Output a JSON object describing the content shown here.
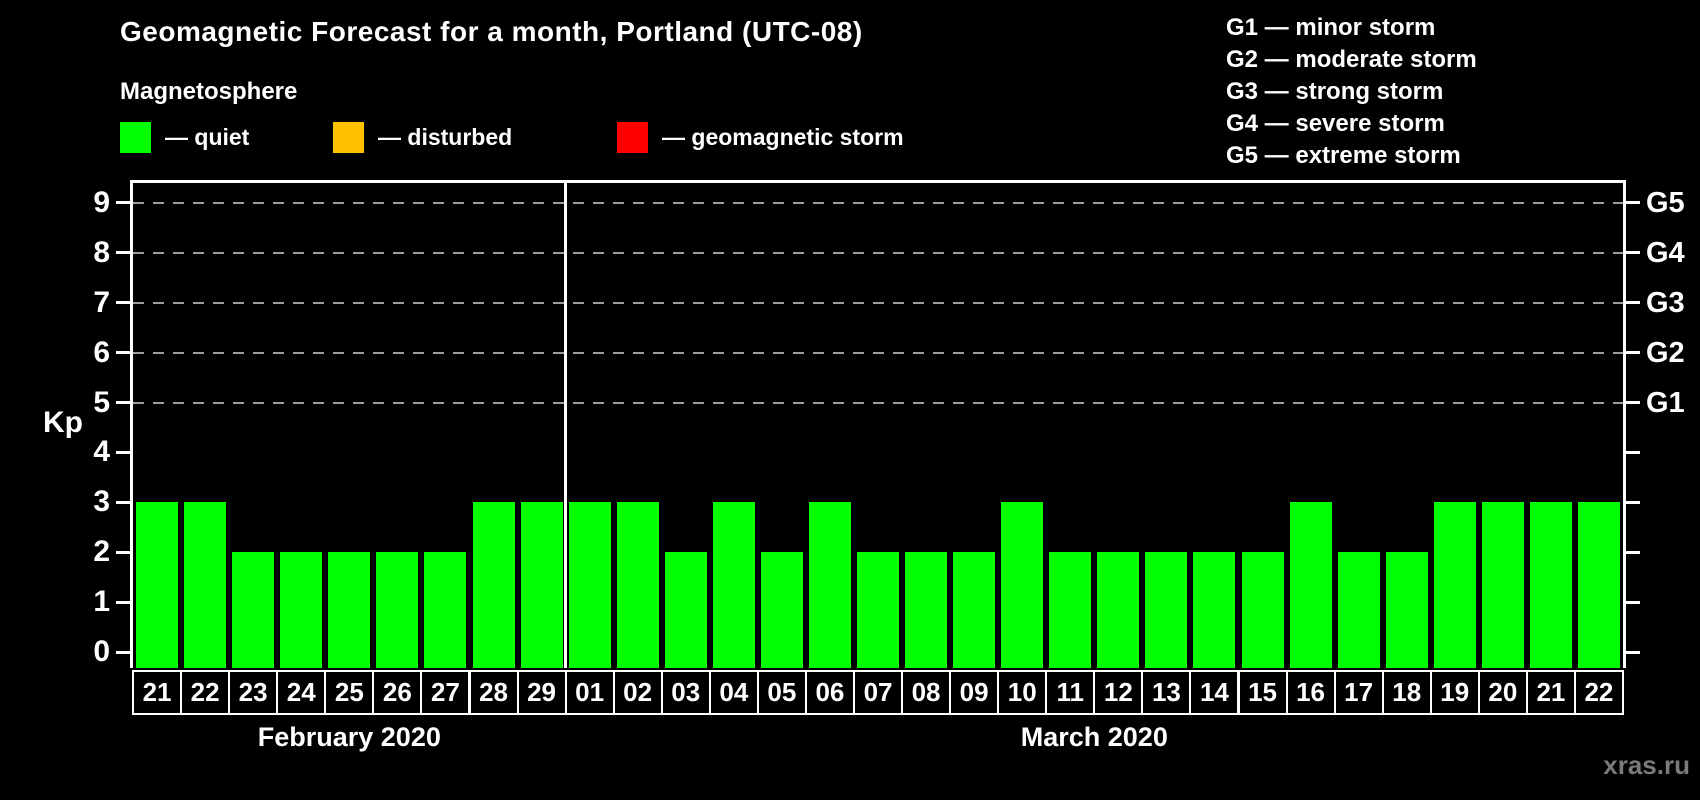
{
  "title": "Geomagnetic Forecast for a month, Portland (UTC-08)",
  "magnetosphere_legend": {
    "heading": "Magnetosphere",
    "items": [
      {
        "name": "quiet",
        "label": "— quiet",
        "color": "#00ff00"
      },
      {
        "name": "disturbed",
        "label": "— disturbed",
        "color": "#ffc000"
      },
      {
        "name": "geomagnetic-storm",
        "label": "— geomagnetic storm",
        "color": "#ff0000"
      }
    ]
  },
  "storm_scale_legend": [
    "G1 — minor storm",
    "G2 — moderate storm",
    "G3 — strong storm",
    "G4 — severe storm",
    "G5 — extreme storm"
  ],
  "chart_data": {
    "type": "bar",
    "ylabel": "Kp",
    "ylim": [
      0,
      9
    ],
    "yticks": [
      0,
      1,
      2,
      3,
      4,
      5,
      6,
      7,
      8,
      9
    ],
    "right_axis_labels": [
      {
        "kp": 5,
        "label": "G1"
      },
      {
        "kp": 6,
        "label": "G2"
      },
      {
        "kp": 7,
        "label": "G3"
      },
      {
        "kp": 8,
        "label": "G4"
      },
      {
        "kp": 9,
        "label": "G5"
      }
    ],
    "gridlines_at_kp": [
      5,
      6,
      7,
      8,
      9
    ],
    "bar_color": "#00ff00",
    "grid_color": "#9c9c9c",
    "axis_color": "#ffffff",
    "groups": [
      {
        "month_label": "February 2020",
        "days": [
          "21",
          "22",
          "23",
          "24",
          "25",
          "26",
          "27",
          "28",
          "29"
        ],
        "values": [
          3,
          3,
          2,
          2,
          2,
          2,
          2,
          3,
          3
        ]
      },
      {
        "month_label": "March 2020",
        "days": [
          "01",
          "02",
          "03",
          "04",
          "05",
          "06",
          "07",
          "08",
          "09",
          "10",
          "11",
          "12",
          "13",
          "14",
          "15",
          "16",
          "17",
          "18",
          "19",
          "20",
          "21",
          "22"
        ],
        "values": [
          3,
          3,
          2,
          3,
          2,
          3,
          2,
          2,
          2,
          3,
          2,
          2,
          2,
          2,
          2,
          3,
          2,
          2,
          3,
          3,
          3,
          3
        ]
      }
    ]
  },
  "watermark": "xras.ru"
}
